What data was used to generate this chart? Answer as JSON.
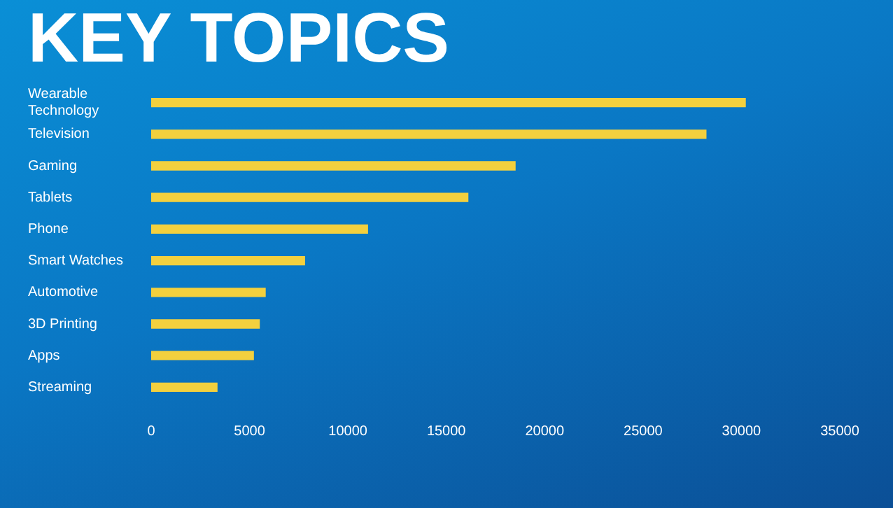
{
  "chart_data": {
    "type": "bar",
    "orientation": "horizontal",
    "title": "KEY TOPICS",
    "categories": [
      "Wearable Technology",
      "Television",
      "Gaming",
      "Tablets",
      "Phone",
      "Smart Watches",
      "Automotive",
      "3D Printing",
      "Apps",
      "Streaming"
    ],
    "values": [
      30200,
      28200,
      18500,
      16100,
      11000,
      7800,
      5800,
      5500,
      5200,
      3350
    ],
    "color": "#f3d03e",
    "xlim": [
      0,
      35000
    ],
    "xticks": [
      0,
      5000,
      10000,
      15000,
      20000,
      25000,
      30000,
      35000
    ],
    "grid": false,
    "legend": false
  }
}
